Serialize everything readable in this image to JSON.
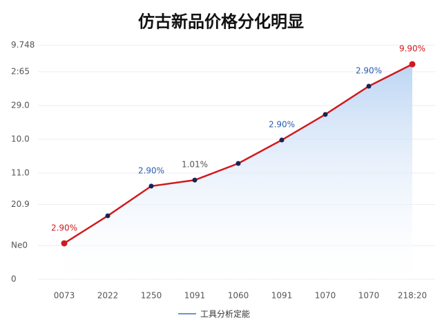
{
  "chart_data": {
    "type": "line",
    "title": "仿古新品价格分化明显",
    "categories": [
      "0073",
      "2022",
      "1250",
      "1091",
      "1060",
      "1091",
      "1070",
      "1070",
      "218:20"
    ],
    "series": [
      {
        "name": "工具分析定能",
        "color": "#d0191c",
        "values": [
          14.9,
          26.3,
          38.6,
          41.1,
          48,
          57.7,
          68.3,
          80,
          89.1
        ]
      }
    ],
    "marker_color": "#1a2352",
    "legend_color": "#3a6fd0",
    "ylim": [
      0,
      100
    ],
    "yticks": [
      0,
      {
        "value": 14,
        "label": "Ne0"
      },
      {
        "value": 31,
        "label": "20.9"
      },
      {
        "value": 44,
        "label": "11.0"
      },
      {
        "value": 58,
        "label": "10.0"
      },
      {
        "value": 72,
        "label": "29.0"
      },
      {
        "value": 86,
        "label": "2:65"
      },
      {
        "value": 97,
        "label": "9.748"
      }
    ],
    "grid": true,
    "annotations": [
      {
        "point": 0,
        "text": "2.90%",
        "color": "#d0191c"
      },
      {
        "point": 2,
        "text": "2.90%",
        "color": "#2a5db0"
      },
      {
        "point": 3,
        "text": "1.01%",
        "color": "#555555"
      },
      {
        "point": 5,
        "text": "2.90%",
        "color": "#2a5db0"
      },
      {
        "point": 7,
        "text": "2.90%",
        "color": "#2a5db0"
      },
      {
        "point": 8,
        "text": "9.90%",
        "color": "#d0191c"
      }
    ]
  }
}
